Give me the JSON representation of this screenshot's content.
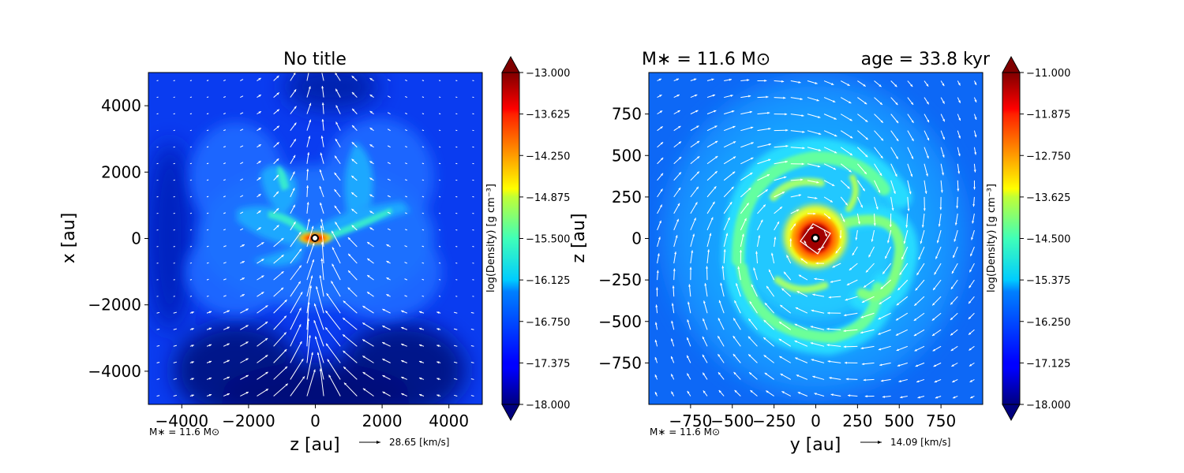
{
  "chart_data": [
    {
      "type": "heatmap",
      "title": "No title",
      "xlabel": "z [au]",
      "ylabel": "x [au]",
      "xlim": [
        -5000,
        5000
      ],
      "ylim": [
        -5000,
        5000
      ],
      "xticks": [
        -4000,
        -2000,
        0,
        2000,
        4000
      ],
      "yticks": [
        -4000,
        -2000,
        0,
        2000,
        4000
      ],
      "xtick_labels": [
        "−4000",
        "−2000",
        "0",
        "2000",
        "4000"
      ],
      "ytick_labels": [
        "−4000",
        "−2000",
        "0",
        "2000",
        "4000"
      ],
      "colorbar": {
        "label": "log(Density) [g cm⁻³]",
        "range": [
          -18.0,
          -13.0
        ],
        "ticks": [
          -13.0,
          -13.625,
          -14.25,
          -14.875,
          -15.5,
          -16.125,
          -16.75,
          -17.375,
          -18.0
        ],
        "tick_labels": [
          "−13.000",
          "−13.625",
          "−14.250",
          "−14.875",
          "−15.500",
          "−16.125",
          "−16.750",
          "−17.375",
          "−18.000"
        ],
        "colormap": "jet"
      },
      "annotation": "M∗ = 11.6 M⊙",
      "vector_key": "28.65 [km/s]"
    },
    {
      "type": "heatmap",
      "title_left": "M∗ = 11.6 M⊙",
      "title_right": "age = 33.8 kyr",
      "xlabel": "y [au]",
      "ylabel": "z [au]",
      "xlim": [
        -1000,
        1000
      ],
      "ylim": [
        -1000,
        1000
      ],
      "xticks": [
        -750,
        -500,
        -250,
        0,
        250,
        500,
        750
      ],
      "yticks": [
        -750,
        -500,
        -250,
        0,
        250,
        500,
        750
      ],
      "xtick_labels": [
        "−750",
        "−500",
        "−250",
        "0",
        "250",
        "500",
        "750"
      ],
      "ytick_labels": [
        "−750",
        "−500",
        "−250",
        "0",
        "250",
        "500",
        "750"
      ],
      "colorbar": {
        "label": "log(Density) [g cm⁻³]",
        "range": [
          -18.0,
          -11.0
        ],
        "ticks": [
          -11.0,
          -11.875,
          -12.75,
          -13.625,
          -14.5,
          -15.375,
          -16.25,
          -17.125,
          -18.0
        ],
        "tick_labels": [
          "−11.000",
          "−11.875",
          "−12.750",
          "−13.625",
          "−14.500",
          "−15.375",
          "−16.250",
          "−17.125",
          "−18.000"
        ],
        "colormap": "jet"
      },
      "annotation": "M∗ = 11.6 M⊙",
      "vector_key": "14.09 [km/s]"
    }
  ]
}
